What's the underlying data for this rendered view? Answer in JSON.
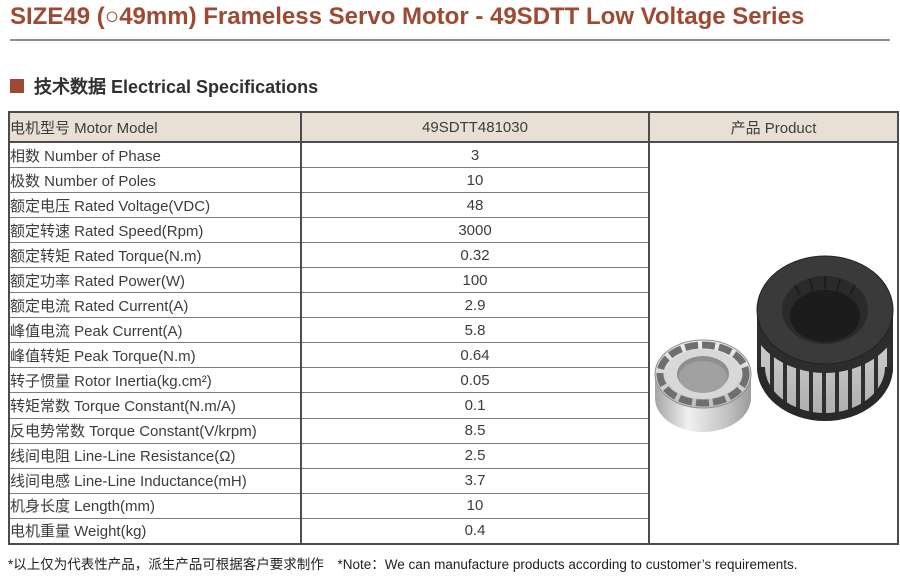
{
  "page": {
    "title": "SIZE49 (○49mm) Frameless Servo Motor - 49SDTT Low Voltage Series",
    "section_heading": "技术数据 Electrical Specifications",
    "footnote_cn": "*以上仅为代表性产品，派生产品可根据客户要求制作",
    "footnote_en": "*Note：We can manufacture products according to customer’s requirements."
  },
  "colors": {
    "accent_brown": "#9e4931",
    "table_header_bg": "#e8e0d4",
    "grid_dark": "#4c4c4c",
    "text": "#3c3c3c"
  },
  "table": {
    "header": {
      "model_label": "电机型号 Motor Model",
      "model_value": "49SDTT481030",
      "product_label": "产品 Product"
    },
    "rows": [
      {
        "label": "相数 Number of Phase",
        "value": "3"
      },
      {
        "label": "极数 Number of Poles",
        "value": "10"
      },
      {
        "label": "额定电压 Rated Voltage(VDC)",
        "value": "48"
      },
      {
        "label": "额定转速 Rated Speed(Rpm)",
        "value": "3000"
      },
      {
        "label": "额定转矩 Rated Torque(N.m)",
        "value": "0.32"
      },
      {
        "label": "额定功率 Rated Power(W)",
        "value": "100"
      },
      {
        "label": "额定电流 Rated Current(A)",
        "value": "2.9"
      },
      {
        "label": "峰值电流 Peak Current(A)",
        "value": "5.8"
      },
      {
        "label": "峰值转矩 Peak Torque(N.m)",
        "value": "0.64"
      },
      {
        "label": "转子惯量 Rotor Inertia(kg.cm²)",
        "value": "0.05"
      },
      {
        "label": "转矩常数 Torque Constant(N.m/A)",
        "value": "0.1"
      },
      {
        "label": "反电势常数 Torque Constant(V/krpm)",
        "value": "8.5"
      },
      {
        "label": "线间电阻 Line-Line Resistance(Ω)",
        "value": "2.5"
      },
      {
        "label": "线间电感 Line-Line Inductance(mH)",
        "value": "3.7"
      },
      {
        "label": "机身长度 Length(mm)",
        "value": "10"
      },
      {
        "label": "电机重量 Weight(kg)",
        "value": "0.4"
      }
    ]
  }
}
